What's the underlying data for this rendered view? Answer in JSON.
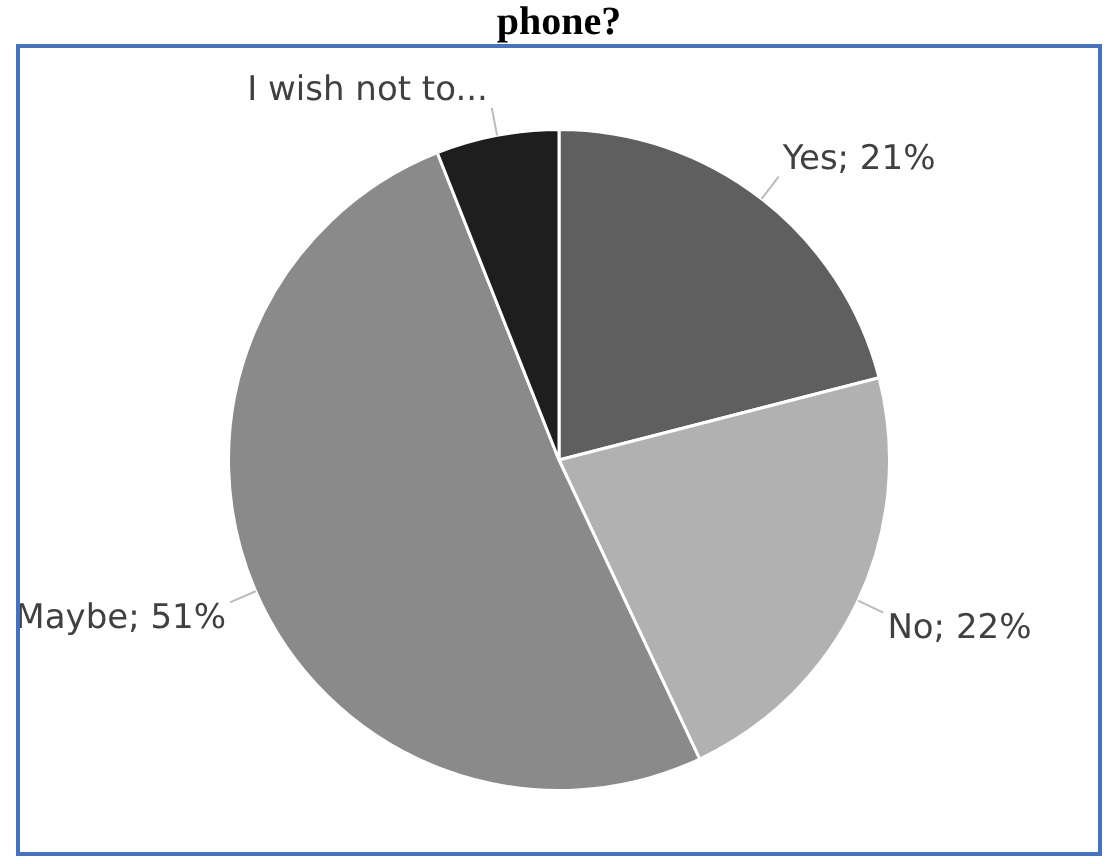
{
  "chart_data": {
    "type": "pie",
    "title": "phone?",
    "categories": [
      "Yes",
      "No",
      "Maybe",
      "I wish not to..."
    ],
    "values": [
      21,
      22,
      51,
      6
    ],
    "value_labels": [
      "21%",
      "22%",
      "51%",
      null
    ],
    "colors": [
      "#5f5f5f",
      "#b1b1b1",
      "#8a8a8a",
      "#1e1e1e"
    ],
    "legend": false
  }
}
